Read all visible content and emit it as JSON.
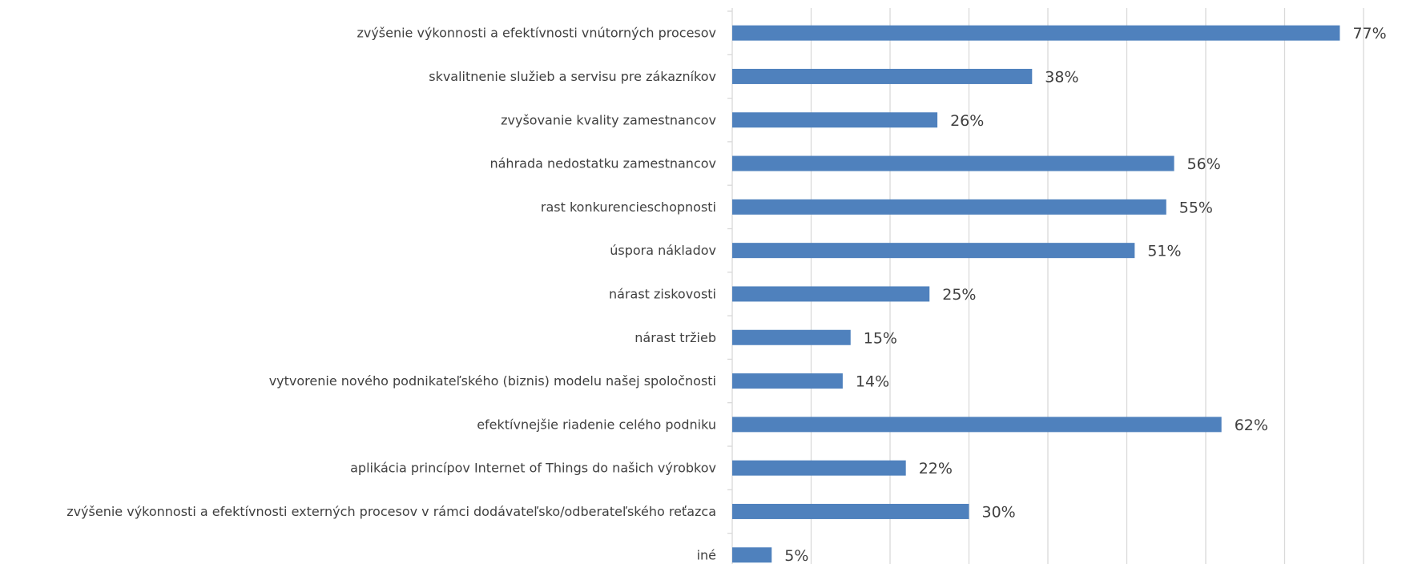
{
  "chart_data": {
    "type": "bar",
    "orientation": "horizontal",
    "title": "",
    "xlabel": "",
    "ylabel": "",
    "xlim": [
      0,
      80
    ],
    "grid": true,
    "value_format": "percent",
    "bar_color": "#4F81BD",
    "grid_color": "#D9D9D9",
    "text_color": "#404040",
    "categories": [
      "zvýšenie výkonnosti a efektívnosti vnútorných procesov",
      "skvalitnenie služieb a servisu pre zákazníkov",
      "zvyšovanie kvality zamestnancov",
      "náhrada nedostatku zamestnancov",
      "rast konkurencieschopnosti",
      "úspora nákladov",
      "nárast ziskovosti",
      "nárast tržieb",
      "vytvorenie nového podnikateľského (biznis) modelu našej spoločnosti",
      "efektívnejšie riadenie celého podniku",
      "aplikácia princípov Internet of Things do našich výrobkov",
      "zvýšenie výkonnosti a efektívnosti externých procesov v rámci dodávateľsko/odberateľského reťazca",
      "iné"
    ],
    "values": [
      77,
      38,
      26,
      56,
      55,
      51,
      25,
      15,
      14,
      62,
      22,
      30,
      5
    ],
    "data_labels": [
      "77%",
      "38%",
      "26%",
      "56%",
      "55%",
      "51%",
      "25%",
      "15%",
      "14%",
      "62%",
      "22%",
      "30%",
      "5%"
    ]
  }
}
